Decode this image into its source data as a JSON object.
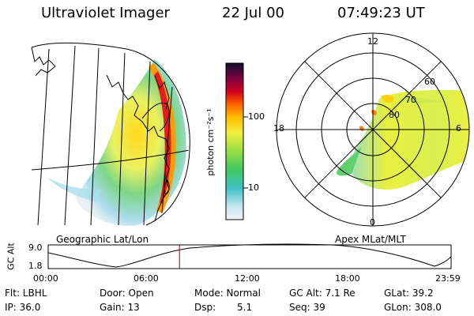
{
  "header": {
    "instrument": "Ultraviolet Imager",
    "date": "22 Jul 00",
    "time": "07:49:23 UT"
  },
  "colorbar": {
    "unit_label": "photon cm⁻²s⁻¹",
    "tick_100": "100",
    "tick_10": "10"
  },
  "geo_panel": {
    "label": "Geographic Lat/Lon"
  },
  "polar_panel": {
    "label": "Apex MLat/MLT",
    "mlt_12": "12",
    "mlt_18": "18",
    "mlt_6": "6",
    "mlt_0": "0",
    "lat_60": "60",
    "lat_70": "70",
    "lat_80": "80"
  },
  "altitude_plot": {
    "axis_label": "GC Alt",
    "y_max": "9.0",
    "y_min": "1.8",
    "x_ticks": [
      "00:00",
      "06:00",
      "12:00",
      "18:00",
      "23:59"
    ],
    "current_time_fraction": 0.326
  },
  "status": {
    "filter": "Flt: LBHL",
    "door": "Door: Open",
    "mode": "Mode: Normal",
    "gc_alt": "GC Alt: 7.1 Re",
    "glat": "GLat:  39.2",
    "ip": "IP: 36.0",
    "gain": "Gain: 13",
    "dsp_label": "Dsp:",
    "dsp_value": "5.1",
    "seq": "Seq: 39",
    "glon": "GLon: 308.0"
  },
  "colors": {
    "marker": "#e01010"
  }
}
